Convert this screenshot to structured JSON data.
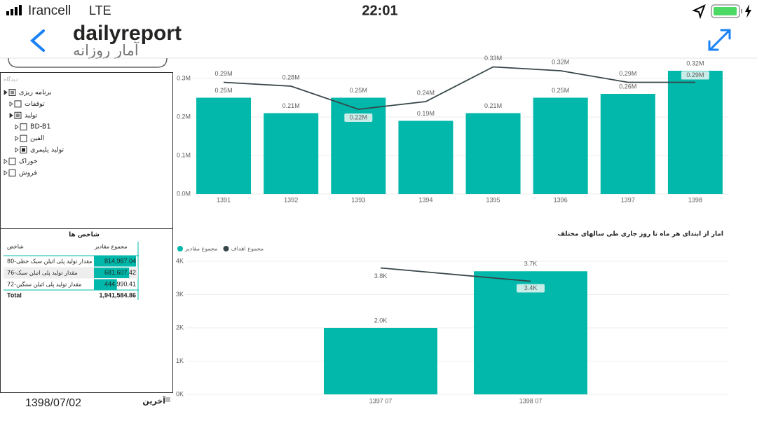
{
  "status_bar": {
    "carrier": "Irancell",
    "network": "LTE",
    "time": "22:01"
  },
  "header": {
    "title": "dailyreport",
    "subtitle": "آمار روزانه"
  },
  "tree": {
    "label": "دیدگاه",
    "items": [
      "برنامه ریزی",
      "توقفات",
      "تولید",
      "BD-B1",
      "الفین",
      "تولید پلیمری",
      "خوراک",
      "فروش"
    ]
  },
  "table": {
    "title": "شاخص ها",
    "headers": [
      "شاخص",
      "مجموع مقادیر"
    ],
    "rows": [
      [
        "مقدار تولید پلی اتیلن سبک خطی-80",
        "814,987.04"
      ],
      [
        "مقدار تولید پلی اتیلن سبک-76",
        "681,607.42"
      ],
      [
        "مقدار تولید پلی اتیلن سنگین-72",
        "444,990.41"
      ]
    ],
    "total": [
      "Total",
      "1,941,584.86"
    ]
  },
  "footer": {
    "date": "1398/07/02",
    "label": "آخرین"
  },
  "chart_data": [
    {
      "type": "combo",
      "categories": [
        "1391",
        "1392",
        "1393",
        "1394",
        "1395",
        "1396",
        "1397",
        "1398"
      ],
      "ylim": [
        0,
        0.34
      ],
      "yticks": [
        {
          "value": 0,
          "label": "0.0M"
        },
        {
          "value": 0.1,
          "label": "0.1M"
        },
        {
          "value": 0.2,
          "label": "0.2M"
        },
        {
          "value": 0.3,
          "label": "0.3M"
        }
      ],
      "grid": true,
      "series": [
        {
          "type": "bar",
          "color": "#01b8aa",
          "values": [
            0.25,
            0.21,
            0.25,
            0.19,
            0.21,
            0.25,
            0.26,
            0.32
          ],
          "value_labels": [
            "0.25M",
            "0.21M",
            "0.25M",
            "0.19M",
            "0.21M",
            "0.25M",
            "0.26M",
            "0.32M"
          ]
        },
        {
          "type": "line",
          "color": "#374649",
          "values": [
            0.29,
            0.28,
            0.22,
            0.24,
            0.33,
            0.32,
            0.29,
            0.29
          ],
          "value_labels": [
            "0.29M",
            "0.28M",
            "0.22M",
            "0.24M",
            "0.33M",
            "0.32M",
            "0.29M",
            "0.29M"
          ]
        }
      ]
    },
    {
      "type": "combo",
      "title": "امار از ابتدای هر ماه تا روز جاری طی سالهای مختلف",
      "categories": [
        "1397 07",
        "1398 07"
      ],
      "ylim": [
        0,
        4000
      ],
      "yticks": [
        {
          "value": 0,
          "label": "0K"
        },
        {
          "value": 1000,
          "label": "1K"
        },
        {
          "value": 2000,
          "label": "2K"
        },
        {
          "value": 3000,
          "label": "3K"
        },
        {
          "value": 4000,
          "label": "4K"
        }
      ],
      "grid": true,
      "legend": "top-left",
      "series": [
        {
          "name": "مجموع مقادیر",
          "type": "bar",
          "color": "#01b8aa",
          "values": [
            2000,
            3700
          ],
          "value_labels": [
            "2.0K",
            "3.7K"
          ]
        },
        {
          "name": "مجموع اهداف",
          "type": "line",
          "color": "#374649",
          "values": [
            3800,
            3400
          ],
          "value_labels": [
            "3.8K",
            "3.4K"
          ]
        }
      ]
    }
  ]
}
